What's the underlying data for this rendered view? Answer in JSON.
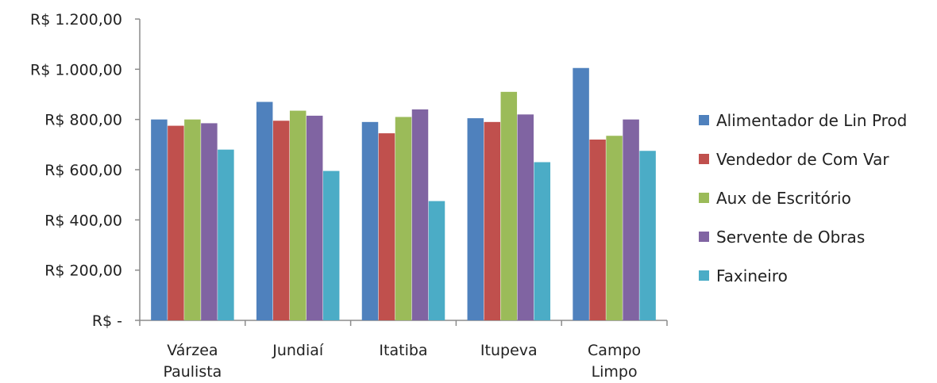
{
  "chart_data": {
    "type": "bar",
    "categories": [
      [
        "Várzea",
        "Paulista"
      ],
      [
        "Jundiaí"
      ],
      [
        "Itatiba"
      ],
      [
        "Itupeva"
      ],
      [
        "Campo",
        "Limpo"
      ]
    ],
    "series": [
      {
        "name": "Alimentador de Lin Prod",
        "color": "#4F81BD",
        "values": [
          800,
          870,
          790,
          805,
          1005
        ]
      },
      {
        "name": "Vendedor de Com Var",
        "color": "#C0504D",
        "values": [
          775,
          795,
          745,
          790,
          720
        ]
      },
      {
        "name": "Aux de Escritório",
        "color": "#9BBB59",
        "values": [
          800,
          835,
          810,
          910,
          735
        ]
      },
      {
        "name": "Servente de Obras",
        "color": "#8064A2",
        "values": [
          785,
          815,
          840,
          820,
          800
        ]
      },
      {
        "name": "Faxineiro",
        "color": "#4BACC6",
        "values": [
          680,
          595,
          475,
          630,
          675
        ]
      }
    ],
    "ylim": [
      0,
      1200
    ],
    "yticks": [
      0,
      200,
      400,
      600,
      800,
      1000,
      1200
    ],
    "ytick_labels": [
      "R$ -",
      "R$ 200,00",
      "R$ 400,00",
      "R$ 600,00",
      "R$ 800,00",
      "R$ 1.000,00",
      "R$ 1.200,00"
    ],
    "title": "",
    "xlabel": "",
    "ylabel": "",
    "grid": false,
    "legend_position": "right"
  }
}
